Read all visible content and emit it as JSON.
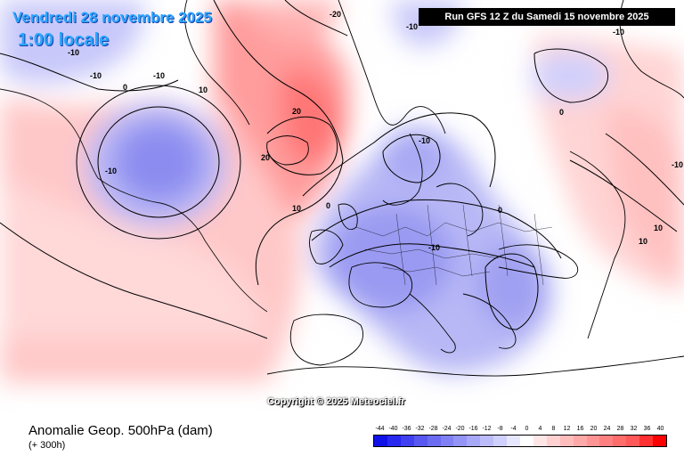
{
  "header": {
    "valid_date": "Vendredi 28 novembre 2025",
    "valid_hour": "1:00 locale",
    "run_info": "Run GFS 12 Z du Samedi 15 novembre 2025"
  },
  "map": {
    "copyright": "Copyright © 2025 Meteociel.fr",
    "contour_labels": [
      "-10",
      "-10",
      "-10",
      "-10",
      "0",
      "10",
      "-10",
      "-20",
      "20",
      "20",
      "10",
      "0",
      "-10",
      "0",
      "-10",
      "0",
      "-10",
      "10",
      "10",
      "-10"
    ]
  },
  "footer": {
    "title": "Anomalie Geop. 500hPa (dam)",
    "lead_time": "(+ 300h)"
  },
  "scale": {
    "labels": [
      "-44",
      "-40",
      "-36",
      "-32",
      "-28",
      "-24",
      "-20",
      "-16",
      "-12",
      "-8",
      "-4",
      "0",
      "4",
      "8",
      "12",
      "16",
      "20",
      "24",
      "28",
      "32",
      "36",
      "40"
    ],
    "colors": [
      "#1010e8",
      "#2828f0",
      "#4040f0",
      "#5858f0",
      "#6c6cf2",
      "#8080f4",
      "#9494f6",
      "#a8a8f8",
      "#bcbcfa",
      "#d0d0fc",
      "#e6e6fe",
      "#ffffff",
      "#ffe6e6",
      "#ffd0d0",
      "#ffbcbc",
      "#ffa8a8",
      "#ff9494",
      "#ff8080",
      "#ff6c6c",
      "#ff5858",
      "#ff3030",
      "#ff0000"
    ]
  }
}
